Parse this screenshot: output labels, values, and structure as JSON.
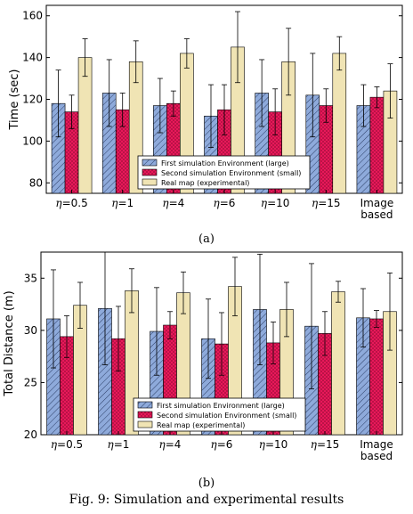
{
  "caption": "Fig. 9: Simulation and experimental results",
  "colors": {
    "large": "#8eaadb",
    "small": "#e8185a",
    "real": "#f0e4b4"
  },
  "chart_data": [
    {
      "type": "bar",
      "sublabel": "(a)",
      "ylabel": "Time (sec)",
      "ylim": [
        75,
        165
      ],
      "yticks": [
        80,
        100,
        120,
        140,
        160
      ],
      "categories": [
        "η=0.5",
        "η=1",
        "η=4",
        "η=6",
        "η=10",
        "η=15",
        "Image based"
      ],
      "legend_position": "lower-center",
      "series": [
        {
          "name": "First simulation Environment (large)",
          "values": [
            118,
            123,
            117,
            112,
            123,
            122,
            117
          ],
          "err": [
            16,
            16,
            13,
            15,
            16,
            20,
            10
          ]
        },
        {
          "name": "Second simulation Environment (small)",
          "values": [
            114,
            115,
            118,
            115,
            114,
            117,
            121
          ],
          "err": [
            8,
            8,
            6,
            12,
            11,
            8,
            5
          ]
        },
        {
          "name": "Real map (experimental)",
          "values": [
            140,
            138,
            142,
            145,
            138,
            142,
            124
          ],
          "err": [
            9,
            10,
            7,
            17,
            16,
            8,
            13
          ]
        }
      ]
    },
    {
      "type": "bar",
      "sublabel": "(b)",
      "ylabel": "Total Distance (m)",
      "ylim": [
        20,
        37.5
      ],
      "yticks": [
        20,
        25,
        30,
        35
      ],
      "categories": [
        "η=0.5",
        "η=1",
        "η=4",
        "η=6",
        "η=10",
        "η=15",
        "Image based"
      ],
      "legend_position": "lower-center",
      "series": [
        {
          "name": "First simulation Environment (large)",
          "values": [
            31.1,
            32.1,
            29.9,
            29.2,
            32.0,
            30.4,
            31.2
          ],
          "err": [
            4.7,
            5.4,
            4.2,
            3.8,
            5.3,
            6.0,
            2.8
          ]
        },
        {
          "name": "Second simulation Environment (small)",
          "values": [
            29.4,
            29.2,
            30.5,
            28.7,
            28.8,
            29.7,
            31.1
          ],
          "err": [
            2.0,
            3.1,
            1.3,
            3.0,
            2.0,
            2.1,
            0.8
          ]
        },
        {
          "name": "Real map (experimental)",
          "values": [
            32.4,
            33.8,
            33.6,
            34.2,
            32.0,
            33.7,
            31.8
          ],
          "err": [
            2.2,
            2.1,
            2.0,
            2.8,
            2.6,
            1.0,
            3.7
          ]
        }
      ]
    }
  ]
}
